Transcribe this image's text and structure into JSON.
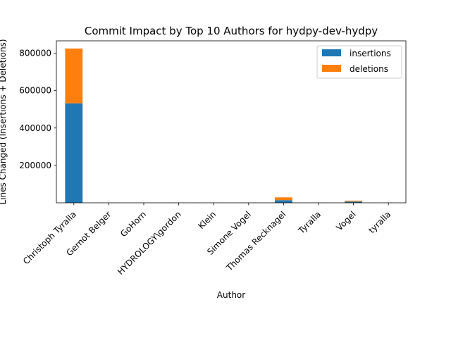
{
  "chart_data": {
    "type": "bar",
    "stacked": true,
    "title": "Commit Impact by Top 10 Authors for hydpy-dev-hydpy",
    "xlabel": "Author",
    "ylabel": "Lines Changed (Insertions + Deletions)",
    "categories": [
      "Christoph Tyralla",
      "Gernot Belger",
      "GoHorn",
      "HYDROLOGY\\gordon",
      "Klein",
      "Simone Vogel",
      "Thomas Recknagel",
      "Tyralla",
      "Vogel",
      "tyralla"
    ],
    "series": [
      {
        "name": "insertions",
        "color": "#1f77b4",
        "values": [
          532000,
          300,
          200,
          300,
          200,
          300,
          14000,
          200,
          6500,
          200
        ]
      },
      {
        "name": "deletions",
        "color": "#ff7f0e",
        "values": [
          293000,
          100,
          100,
          100,
          100,
          100,
          15000,
          100,
          5000,
          100
        ]
      }
    ],
    "yticks": [
      200000,
      400000,
      600000,
      800000
    ],
    "ytick_labels": [
      "200000",
      "400000",
      "600000",
      "800000"
    ],
    "ylim": [
      0,
      866000
    ],
    "grid": false,
    "legend_position": "top-right"
  }
}
